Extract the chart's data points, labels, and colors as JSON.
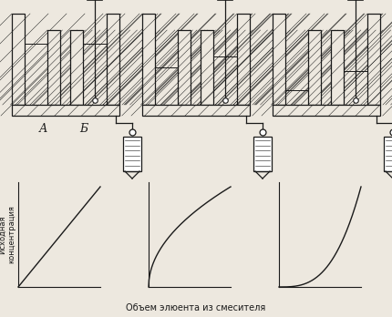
{
  "bg_color": "#ede8df",
  "line_color": "#1a1a1a",
  "label_A": "А",
  "label_B": "Б",
  "ylabel": "Исходная\nконцентрация",
  "xlabel": "Объем элюента из смесителя",
  "fig_width": 4.3,
  "fig_height": 3.48,
  "dpi": 100
}
